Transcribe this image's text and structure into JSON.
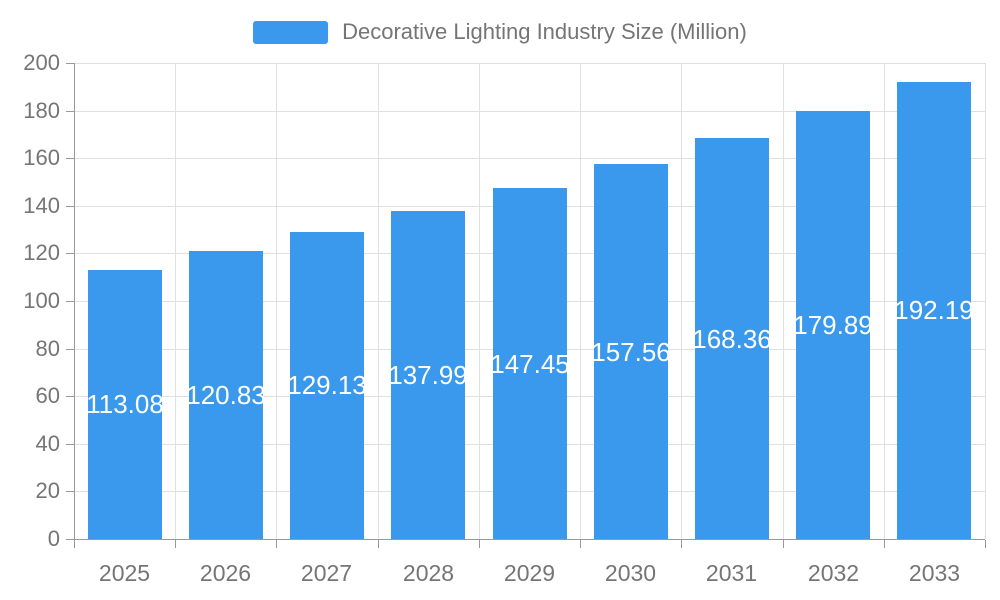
{
  "legend": {
    "label": "Decorative Lighting Industry Size (Million)"
  },
  "chart_data": {
    "type": "bar",
    "title": "Decorative Lighting Industry Size (Million)",
    "categories": [
      "2025",
      "2026",
      "2027",
      "2028",
      "2029",
      "2030",
      "2031",
      "2032",
      "2033"
    ],
    "values": [
      113.08,
      120.83,
      129.13,
      137.99,
      147.45,
      157.56,
      168.36,
      179.89,
      192.19
    ],
    "xlabel": "",
    "ylabel": "",
    "ylim": [
      0,
      200
    ],
    "yticks": [
      0,
      20,
      40,
      60,
      80,
      100,
      120,
      140,
      160,
      180,
      200
    ],
    "grid": true,
    "legend_position": "top-center",
    "value_label_position": "inside-center",
    "value_label_decimals": 2
  },
  "colors": {
    "bar": "#3A99EC",
    "grid_line": "#E0E0E0",
    "axis_line": "#999999",
    "axis_text": "#757575",
    "value_label_text": "#FFFFFF",
    "background": "#FFFFFF"
  }
}
